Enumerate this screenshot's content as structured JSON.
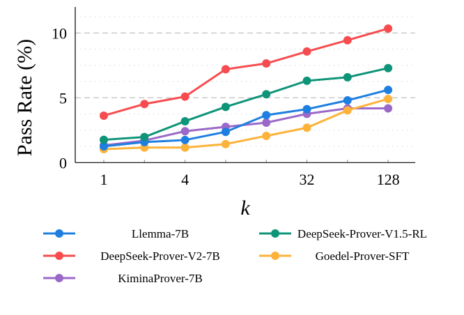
{
  "chart_data": {
    "type": "line",
    "title": "",
    "xlabel": "k",
    "ylabel": "Pass Rate (%)",
    "x_scale": "log2",
    "x": [
      1,
      2,
      4,
      8,
      16,
      32,
      64,
      128
    ],
    "xticks": [
      1,
      4,
      32,
      128
    ],
    "yticks": [
      0,
      5,
      10
    ],
    "ylim": [
      0,
      12
    ],
    "grid": "horizontal (dashed major, dotted minor)",
    "legend_placement": "bottom",
    "series": [
      {
        "name": "Llemma-7B",
        "color": "#1e7fe0",
        "values": [
          1.25,
          1.58,
          1.74,
          2.37,
          3.66,
          4.12,
          4.8,
          5.61
        ]
      },
      {
        "name": "DeepSeek-Prover-V1.5-RL",
        "color": "#0e9478",
        "values": [
          1.76,
          1.97,
          3.19,
          4.3,
          5.27,
          6.31,
          6.58,
          7.29
        ]
      },
      {
        "name": "DeepSeek-Prover-V2-7B",
        "color": "#f64c4f",
        "values": [
          3.62,
          4.52,
          5.09,
          7.2,
          7.65,
          8.57,
          9.44,
          10.34
        ]
      },
      {
        "name": "Goedel-Prover-SFT",
        "color": "#fdb33b",
        "values": [
          1.04,
          1.16,
          1.16,
          1.43,
          2.06,
          2.69,
          4.03,
          4.91
        ]
      },
      {
        "name": "KiminaProver-7B",
        "color": "#9b69c9",
        "values": [
          1.33,
          1.7,
          2.42,
          2.76,
          3.08,
          3.76,
          4.18,
          4.18
        ]
      }
    ]
  }
}
